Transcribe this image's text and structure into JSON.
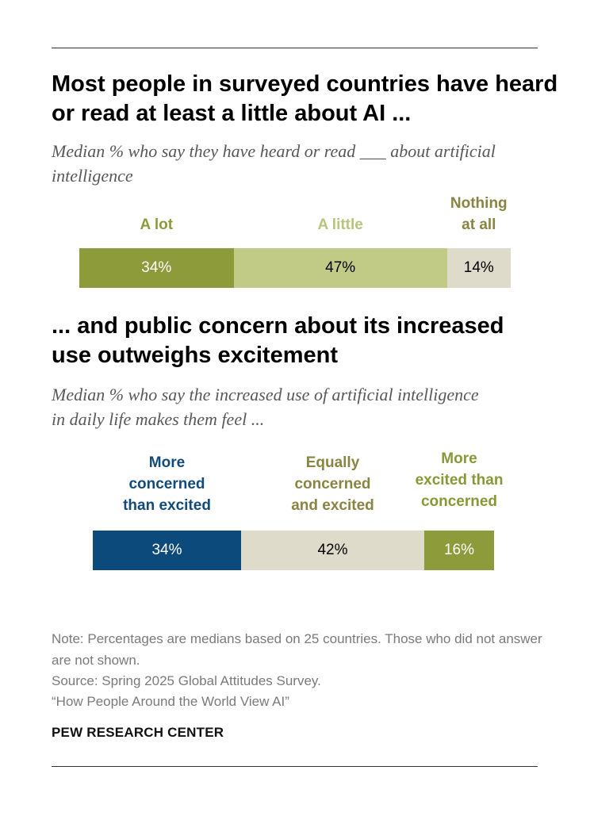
{
  "colors": {
    "olive_dark": "#8d9b3b",
    "olive_light": "#c2cb85",
    "beige": "#dedbcb",
    "navy": "#0b4a7b",
    "label_olive_light": "#b9c47c",
    "label_olive_text": "#8a8443",
    "label_olive_dark": "#879937",
    "label_navy": "#124b79"
  },
  "chart_data": [
    {
      "type": "bar",
      "orientation": "horizontal-stacked",
      "title": "Most people in surveyed countries have heard or read at least a little about AI ...",
      "subtitle": "Median % who say they have heard or read ___ about artificial intelligence",
      "segments": [
        {
          "name": "A lot",
          "value": 34,
          "label": "34%",
          "color": "#8d9b3b",
          "label_color": "#8d9b3b",
          "text_color": "#ffffff"
        },
        {
          "name": "A little",
          "value": 47,
          "label": "47%",
          "color": "#c2cb85",
          "label_color": "#b9c47c",
          "text_color": "#000000"
        },
        {
          "name": "Nothing at all",
          "value": 14,
          "label": "14%",
          "color": "#dedbcb",
          "label_color": "#8a8443",
          "text_color": "#000000"
        }
      ]
    },
    {
      "type": "bar",
      "orientation": "horizontal-stacked",
      "title": "... and public concern about its increased use outweighs excitement",
      "subtitle": "Median % who say the increased use of artificial intelligence in daily life makes them feel ...",
      "segments": [
        {
          "name": "More concerned than excited",
          "value": 34,
          "label": "34%",
          "color": "#0b4a7b",
          "label_color": "#124b79",
          "text_color": "#ffffff"
        },
        {
          "name": "Equally concerned and excited",
          "value": 42,
          "label": "42%",
          "color": "#dedbcb",
          "label_color": "#8a8443",
          "text_color": "#000000"
        },
        {
          "name": "More excited than concerned",
          "value": 16,
          "label": "16%",
          "color": "#8d9b3b",
          "label_color": "#879937",
          "text_color": "#ffffff"
        }
      ]
    }
  ],
  "notes": {
    "note": "Note: Percentages are medians based on 25 countries. Those who did not answer are not shown.",
    "source": "Source: Spring 2025 Global Attitudes Survey.",
    "report": "“How People Around the World View AI”"
  },
  "brand": "PEW RESEARCH CENTER"
}
